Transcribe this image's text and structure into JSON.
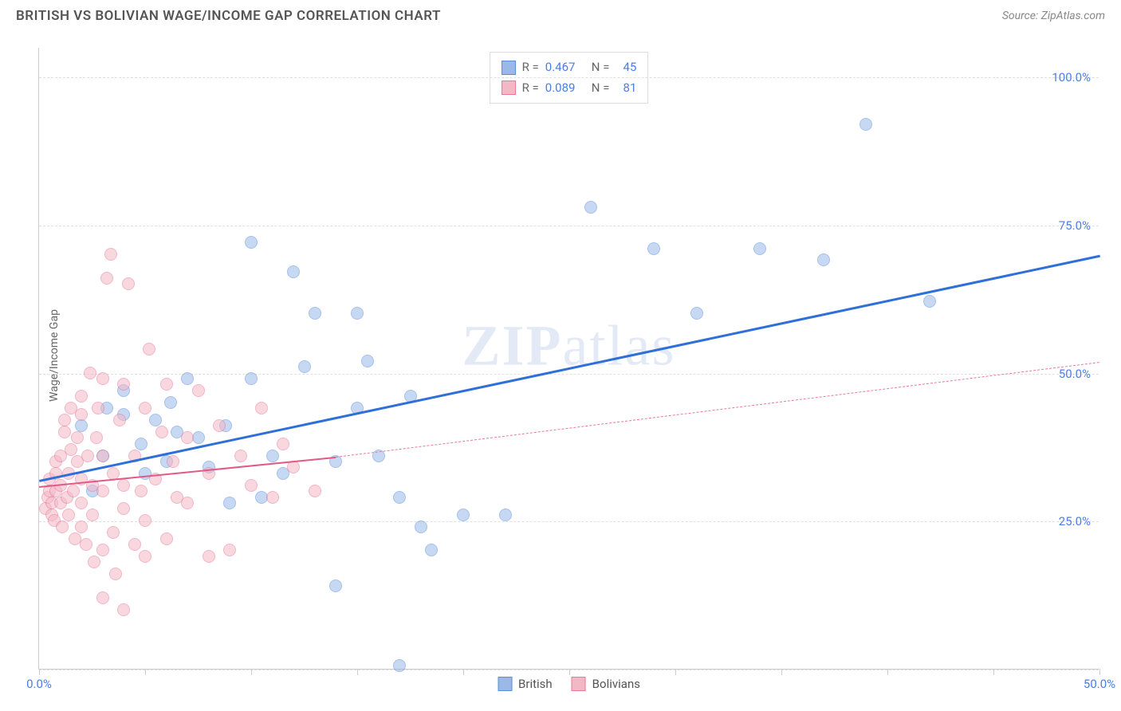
{
  "header": {
    "title": "BRITISH VS BOLIVIAN WAGE/INCOME GAP CORRELATION CHART",
    "source": "Source: ZipAtlas.com"
  },
  "chart": {
    "type": "scatter",
    "ylabel": "Wage/Income Gap",
    "watermark": "ZIPatlas",
    "xlim": [
      0,
      50
    ],
    "ylim": [
      0,
      105
    ],
    "xtick_labels": {
      "0": "0.0%",
      "50": "50.0%"
    },
    "xtick_positions": [
      0,
      5,
      10,
      15,
      20,
      25,
      30,
      35,
      40,
      45,
      50
    ],
    "ytick_labels": {
      "25": "25.0%",
      "50": "50.0%",
      "75": "75.0%",
      "100": "100.0%"
    },
    "grid_y": [
      0,
      25,
      50,
      75,
      100
    ],
    "background_color": "#ffffff",
    "grid_color": "#e0e0e0",
    "axis_text_color": "#4a7ee8",
    "marker_radius": 8,
    "marker_opacity": 0.55,
    "series": [
      {
        "name": "British",
        "color_fill": "#9bb9e8",
        "color_stroke": "#5a8edb",
        "trend": {
          "x1": 0,
          "y1": 32,
          "x2": 50,
          "y2": 70,
          "color": "#2f6fd8",
          "width": 3,
          "dash": false
        },
        "points": [
          [
            2,
            41
          ],
          [
            2.5,
            30
          ],
          [
            3,
            36
          ],
          [
            4,
            43
          ],
          [
            4,
            47
          ],
          [
            5,
            33
          ],
          [
            5.5,
            42
          ],
          [
            6,
            35
          ],
          [
            6.5,
            40
          ],
          [
            7,
            49
          ],
          [
            8,
            34
          ],
          [
            9,
            28
          ],
          [
            10,
            72
          ],
          [
            10,
            49
          ],
          [
            10.5,
            29
          ],
          [
            11,
            36
          ],
          [
            12,
            67
          ],
          [
            12.5,
            51
          ],
          [
            13,
            60
          ],
          [
            14,
            35
          ],
          [
            14,
            14
          ],
          [
            15,
            44
          ],
          [
            15,
            60
          ],
          [
            15.5,
            52
          ],
          [
            16,
            36
          ],
          [
            17,
            0.5
          ],
          [
            17,
            29
          ],
          [
            17.5,
            46
          ],
          [
            18,
            24
          ],
          [
            18.5,
            20
          ],
          [
            20,
            26
          ],
          [
            22,
            26
          ],
          [
            26,
            78
          ],
          [
            29,
            71
          ],
          [
            31,
            60
          ],
          [
            34,
            71
          ],
          [
            37,
            69
          ],
          [
            39,
            92
          ],
          [
            42,
            62
          ],
          [
            3.2,
            44
          ],
          [
            4.8,
            38
          ],
          [
            6.2,
            45
          ],
          [
            7.5,
            39
          ],
          [
            8.8,
            41
          ],
          [
            11.5,
            33
          ]
        ]
      },
      {
        "name": "Bolivians",
        "color_fill": "#f3b8c6",
        "color_stroke": "#e77a9a",
        "trend_solid": {
          "x1": 0,
          "y1": 31,
          "x2": 14,
          "y2": 36,
          "color": "#e05a85",
          "width": 2.5
        },
        "trend_dash": {
          "x1": 14,
          "y1": 36,
          "x2": 50,
          "y2": 52,
          "color": "#e77a9a",
          "width": 1.5
        },
        "points": [
          [
            0.3,
            27
          ],
          [
            0.4,
            29
          ],
          [
            0.5,
            30
          ],
          [
            0.5,
            32
          ],
          [
            0.6,
            28
          ],
          [
            0.6,
            26
          ],
          [
            0.7,
            25
          ],
          [
            0.8,
            30
          ],
          [
            0.8,
            33
          ],
          [
            0.8,
            35
          ],
          [
            1,
            28
          ],
          [
            1,
            31
          ],
          [
            1,
            36
          ],
          [
            1.1,
            24
          ],
          [
            1.2,
            40
          ],
          [
            1.2,
            42
          ],
          [
            1.3,
            29
          ],
          [
            1.4,
            33
          ],
          [
            1.4,
            26
          ],
          [
            1.5,
            37
          ],
          [
            1.5,
            44
          ],
          [
            1.6,
            30
          ],
          [
            1.7,
            22
          ],
          [
            1.8,
            35
          ],
          [
            1.8,
            39
          ],
          [
            2,
            24
          ],
          [
            2,
            28
          ],
          [
            2,
            32
          ],
          [
            2,
            43
          ],
          [
            2,
            46
          ],
          [
            2.2,
            21
          ],
          [
            2.3,
            36
          ],
          [
            2.4,
            50
          ],
          [
            2.5,
            26
          ],
          [
            2.5,
            31
          ],
          [
            2.6,
            18
          ],
          [
            2.7,
            39
          ],
          [
            2.8,
            44
          ],
          [
            3,
            12
          ],
          [
            3,
            20
          ],
          [
            3,
            30
          ],
          [
            3,
            36
          ],
          [
            3,
            49
          ],
          [
            3.2,
            66
          ],
          [
            3.4,
            70
          ],
          [
            3.5,
            23
          ],
          [
            3.5,
            33
          ],
          [
            3.6,
            16
          ],
          [
            3.8,
            42
          ],
          [
            4,
            10
          ],
          [
            4,
            27
          ],
          [
            4,
            31
          ],
          [
            4,
            48
          ],
          [
            4.2,
            65
          ],
          [
            4.5,
            21
          ],
          [
            4.5,
            36
          ],
          [
            4.8,
            30
          ],
          [
            5,
            19
          ],
          [
            5,
            25
          ],
          [
            5,
            44
          ],
          [
            5.2,
            54
          ],
          [
            5.5,
            32
          ],
          [
            5.8,
            40
          ],
          [
            6,
            22
          ],
          [
            6,
            48
          ],
          [
            6.3,
            35
          ],
          [
            6.5,
            29
          ],
          [
            7,
            28
          ],
          [
            7,
            39
          ],
          [
            7.5,
            47
          ],
          [
            8,
            19
          ],
          [
            8,
            33
          ],
          [
            8.5,
            41
          ],
          [
            9,
            20
          ],
          [
            9.5,
            36
          ],
          [
            10,
            31
          ],
          [
            10.5,
            44
          ],
          [
            11,
            29
          ],
          [
            11.5,
            38
          ],
          [
            12,
            34
          ],
          [
            13,
            30
          ]
        ]
      }
    ],
    "legend_top": [
      {
        "swatch_fill": "#9bb9e8",
        "swatch_stroke": "#5a8edb",
        "r_label": "R =",
        "r_value": "0.467",
        "n_label": "N =",
        "n_value": "45"
      },
      {
        "swatch_fill": "#f3b8c6",
        "swatch_stroke": "#e77a9a",
        "r_label": "R =",
        "r_value": "0.089",
        "n_label": "N =",
        "n_value": "81"
      }
    ],
    "legend_bottom": [
      {
        "swatch_fill": "#9bb9e8",
        "swatch_stroke": "#5a8edb",
        "label": "British"
      },
      {
        "swatch_fill": "#f3b8c6",
        "swatch_stroke": "#e77a9a",
        "label": "Bolivians"
      }
    ]
  }
}
